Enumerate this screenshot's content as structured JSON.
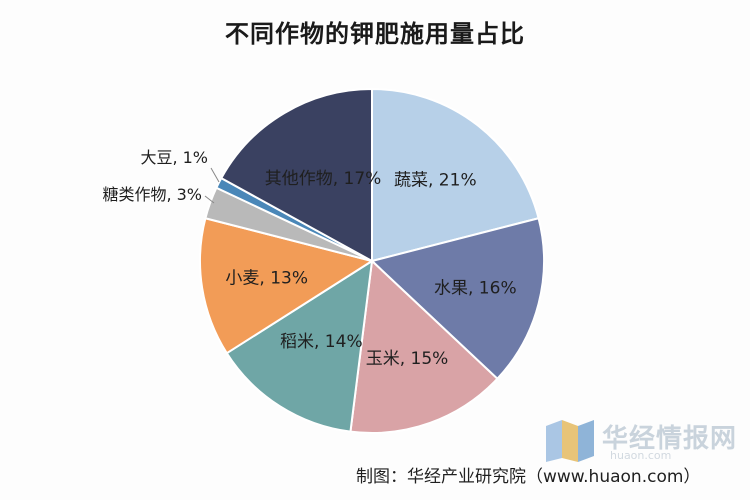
{
  "title": "不同作物的钾肥施用量占比",
  "source": "制图：华经产业研究院（www.huaon.com）",
  "watermark": {
    "name": "华经情报网",
    "url": "huaon.com"
  },
  "chart_data": {
    "type": "pie",
    "title": "不同作物的钾肥施用量占比",
    "start_angle_deg": 0,
    "direction": "clockwise",
    "slices": [
      {
        "name": "蔬菜",
        "value": 21,
        "label": "蔬菜, 21%",
        "color": "#b7d0e8",
        "label_pos": "inside"
      },
      {
        "name": "水果",
        "value": 16,
        "label": "水果, 16%",
        "color": "#6e7ba8",
        "label_pos": "inside"
      },
      {
        "name": "玉米",
        "value": 15,
        "label": "玉米, 15%",
        "color": "#d9a3a6",
        "label_pos": "inside"
      },
      {
        "name": "稻米",
        "value": 14,
        "label": "稻米, 14%",
        "color": "#6fa6a6",
        "label_pos": "inside"
      },
      {
        "name": "小麦",
        "value": 13,
        "label": "小麦, 13%",
        "color": "#f29c57",
        "label_pos": "inside"
      },
      {
        "name": "糖类作物",
        "value": 3,
        "label": "糖类作物, 3%",
        "color": "#b9b9b9",
        "label_pos": "outside"
      },
      {
        "name": "大豆",
        "value": 1,
        "label": "大豆, 1%",
        "color": "#4a87b8",
        "label_pos": "outside"
      },
      {
        "name": "其他作物",
        "value": 17,
        "label": "其他作物, 17%",
        "color": "#3a4161",
        "label_pos": "inside"
      }
    ]
  }
}
